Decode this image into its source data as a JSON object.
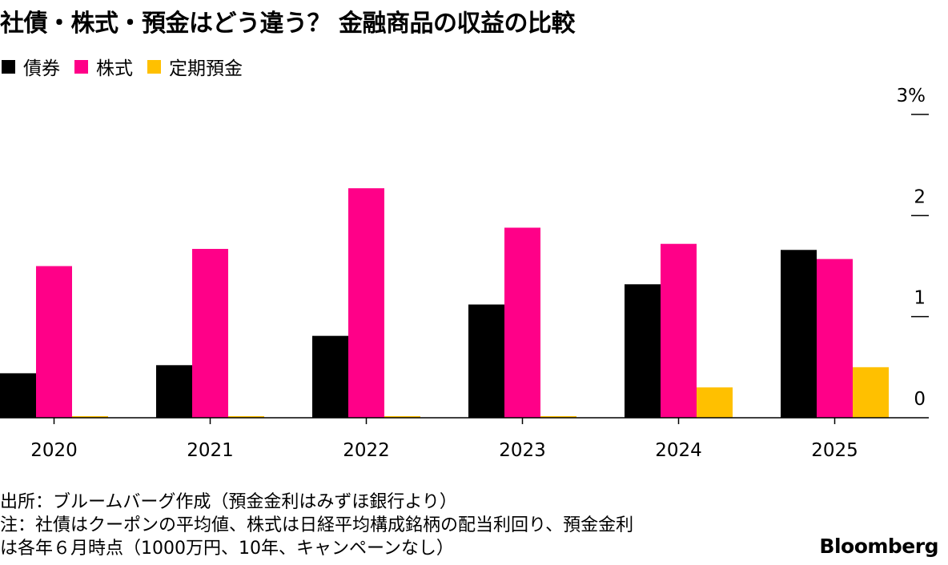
{
  "title": "社債・株式・預金はどう違う？ 金融商品の収益の比較",
  "chart_data": {
    "type": "bar",
    "categories": [
      "2020",
      "2021",
      "2022",
      "2023",
      "2024",
      "2025"
    ],
    "series": [
      {
        "name": "債券",
        "color": "#000000",
        "values": [
          0.44,
          0.52,
          0.81,
          1.12,
          1.32,
          1.66
        ]
      },
      {
        "name": "株式",
        "color": "#ff0088",
        "values": [
          1.5,
          1.67,
          2.27,
          1.88,
          1.72,
          1.57
        ]
      },
      {
        "name": "定期預金",
        "color": "#ffc000",
        "values": [
          0.002,
          0.002,
          0.002,
          0.002,
          0.3,
          0.5
        ]
      }
    ],
    "y_ticks": [
      "0",
      "1",
      "2",
      "3%"
    ],
    "ylim": [
      0,
      3
    ],
    "xlabel": "",
    "ylabel": "",
    "legend": "top-left",
    "y_axis_side": "right",
    "grid": false
  },
  "notes": [
    "出所：ブルームバーグ作成（預金金利はみずほ銀行より）",
    "注：社債はクーポンの平均値、株式は日経平均構成銘柄の配当利回り、預金金利",
    "は各年６月時点（1000万円、10年、キャンペーンなし）"
  ],
  "brand": "Bloomberg"
}
